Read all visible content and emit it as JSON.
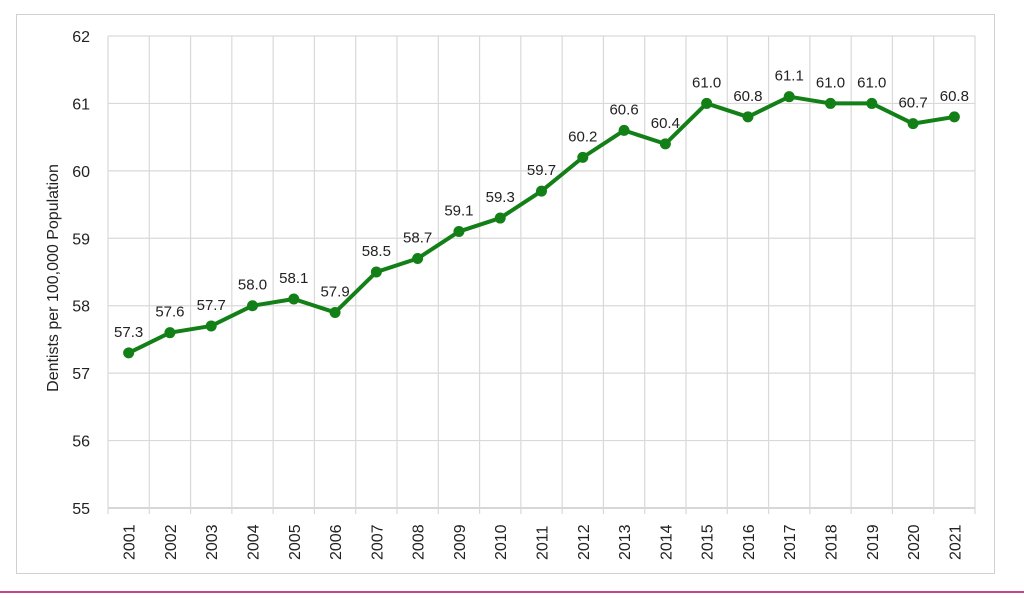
{
  "colors": {
    "line": "#137f17",
    "grid": "#d9d9d9",
    "axis": "#bfbfbf",
    "frame": "#d0d0d0",
    "bottom_rule": "#c2478f",
    "text": "#222222"
  },
  "chart_data": {
    "type": "line",
    "title": "",
    "xlabel": "",
    "ylabel": "Dentists per 100,000 Population",
    "ylim": [
      55,
      62
    ],
    "yticks": [
      55,
      56,
      57,
      58,
      59,
      60,
      61,
      62
    ],
    "grid": true,
    "legend": "none",
    "categories": [
      "2001",
      "2002",
      "2003",
      "2004",
      "2005",
      "2006",
      "2007",
      "2008",
      "2009",
      "2010",
      "2011",
      "2012",
      "2013",
      "2014",
      "2015",
      "2016",
      "2017",
      "2018",
      "2019",
      "2020",
      "2021"
    ],
    "series": [
      {
        "values": [
          57.3,
          57.6,
          57.7,
          58.0,
          58.1,
          57.9,
          58.5,
          58.7,
          59.1,
          59.3,
          59.7,
          60.2,
          60.6,
          60.4,
          61.0,
          60.8,
          61.1,
          61.0,
          61.0,
          60.7,
          60.8
        ],
        "labels": [
          "57.3",
          "57.6",
          "57.7",
          "58.0",
          "58.1",
          "57.9",
          "58.5",
          "58.7",
          "59.1",
          "59.3",
          "59.7",
          "60.2",
          "60.6",
          "60.4",
          "61.0",
          "60.8",
          "61.1",
          "61.0",
          "61.0",
          "60.7",
          "60.8"
        ]
      }
    ]
  }
}
